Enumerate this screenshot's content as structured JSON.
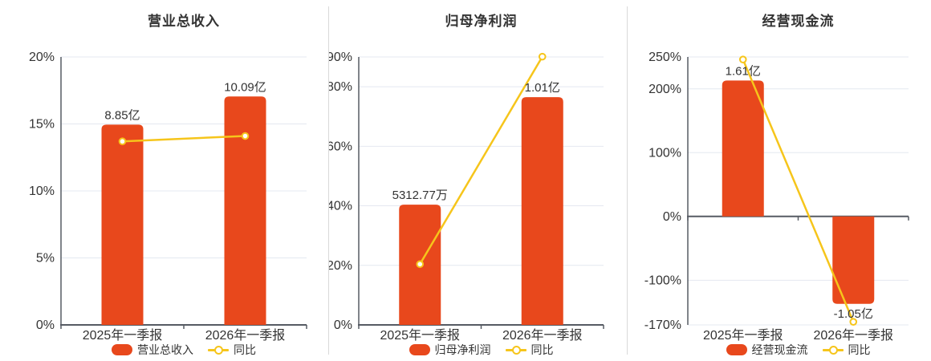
{
  "page": {
    "background": "#ffffff"
  },
  "colors": {
    "bar": "#e8481c",
    "line": "#f6c51b",
    "point_fill": "#ffffff",
    "axis": "#565b63",
    "grid": "#e4e8f0",
    "text": "#333333",
    "divider": "#d9d9d9"
  },
  "chart_data": [
    {
      "type": "bar",
      "title": "营业总收入",
      "categories": [
        "2025年一季报",
        "2026年一季报"
      ],
      "ylim": [
        0,
        20
      ],
      "y_axis_unit": "%",
      "grid": true,
      "legend": [
        "营业总收入",
        "同比"
      ],
      "legend_position": "bottom",
      "y_ticks": [
        {
          "value": 20,
          "label": "20%"
        },
        {
          "value": 15,
          "label": "15%"
        },
        {
          "value": 10,
          "label": "10%"
        },
        {
          "value": 5,
          "label": "5%"
        },
        {
          "value": 0,
          "label": "0%"
        }
      ],
      "series": [
        {
          "name": "营业总收入",
          "kind": "bar",
          "unit": "亿",
          "value_labels": [
            "8.85亿",
            "10.09亿"
          ],
          "values_yi": [
            8.85,
            10.09
          ],
          "plotted_axis_values": [
            14.95,
            17.05
          ]
        },
        {
          "name": "同比",
          "kind": "line",
          "unit": "%",
          "values_pct": [
            13.7,
            14.1
          ]
        }
      ]
    },
    {
      "type": "bar",
      "title": "归母净利润",
      "categories": [
        "2025年一季报",
        "2026年一季报"
      ],
      "ylim": [
        0,
        90
      ],
      "y_axis_unit": "%",
      "grid": true,
      "legend": [
        "归母净利润",
        "同比"
      ],
      "legend_position": "bottom",
      "y_ticks": [
        {
          "value": 90,
          "label": "90%"
        },
        {
          "value": 80,
          "label": "80%"
        },
        {
          "value": 60,
          "label": "60%"
        },
        {
          "value": 40,
          "label": "40%"
        },
        {
          "value": 20,
          "label": "20%"
        },
        {
          "value": 0,
          "label": "0%"
        }
      ],
      "series": [
        {
          "name": "归母净利润",
          "kind": "bar",
          "unit": "亿",
          "value_labels": [
            "5312.77万",
            "1.01亿"
          ],
          "values_yi": [
            0.531277,
            1.01
          ],
          "plotted_axis_values": [
            40.4,
            76.5
          ]
        },
        {
          "name": "同比",
          "kind": "line",
          "unit": "%",
          "values_pct": [
            20.4,
            90.1
          ]
        }
      ]
    },
    {
      "type": "bar",
      "title": "经营现金流",
      "categories": [
        "2025年一季报",
        "2026年一季报"
      ],
      "ylim": [
        -170,
        250
      ],
      "y_axis_unit": "%",
      "grid": true,
      "legend": [
        "经营现金流",
        "同比"
      ],
      "legend_position": "bottom",
      "y_ticks": [
        {
          "value": 250,
          "label": "250%"
        },
        {
          "value": 200,
          "label": "200%"
        },
        {
          "value": 100,
          "label": "100%"
        },
        {
          "value": 0,
          "label": "0%"
        },
        {
          "value": -100,
          "label": "-100%"
        },
        {
          "value": -170,
          "label": "-170%"
        }
      ],
      "series": [
        {
          "name": "经营现金流",
          "kind": "bar",
          "unit": "亿",
          "value_labels": [
            "1.61亿",
            "-1.05亿"
          ],
          "values_yi": [
            1.61,
            -1.05
          ],
          "plotted_axis_values": [
            213,
            -137
          ]
        },
        {
          "name": "同比",
          "kind": "line",
          "unit": "%",
          "values_pct": [
            246,
            -165.2
          ]
        }
      ]
    }
  ]
}
